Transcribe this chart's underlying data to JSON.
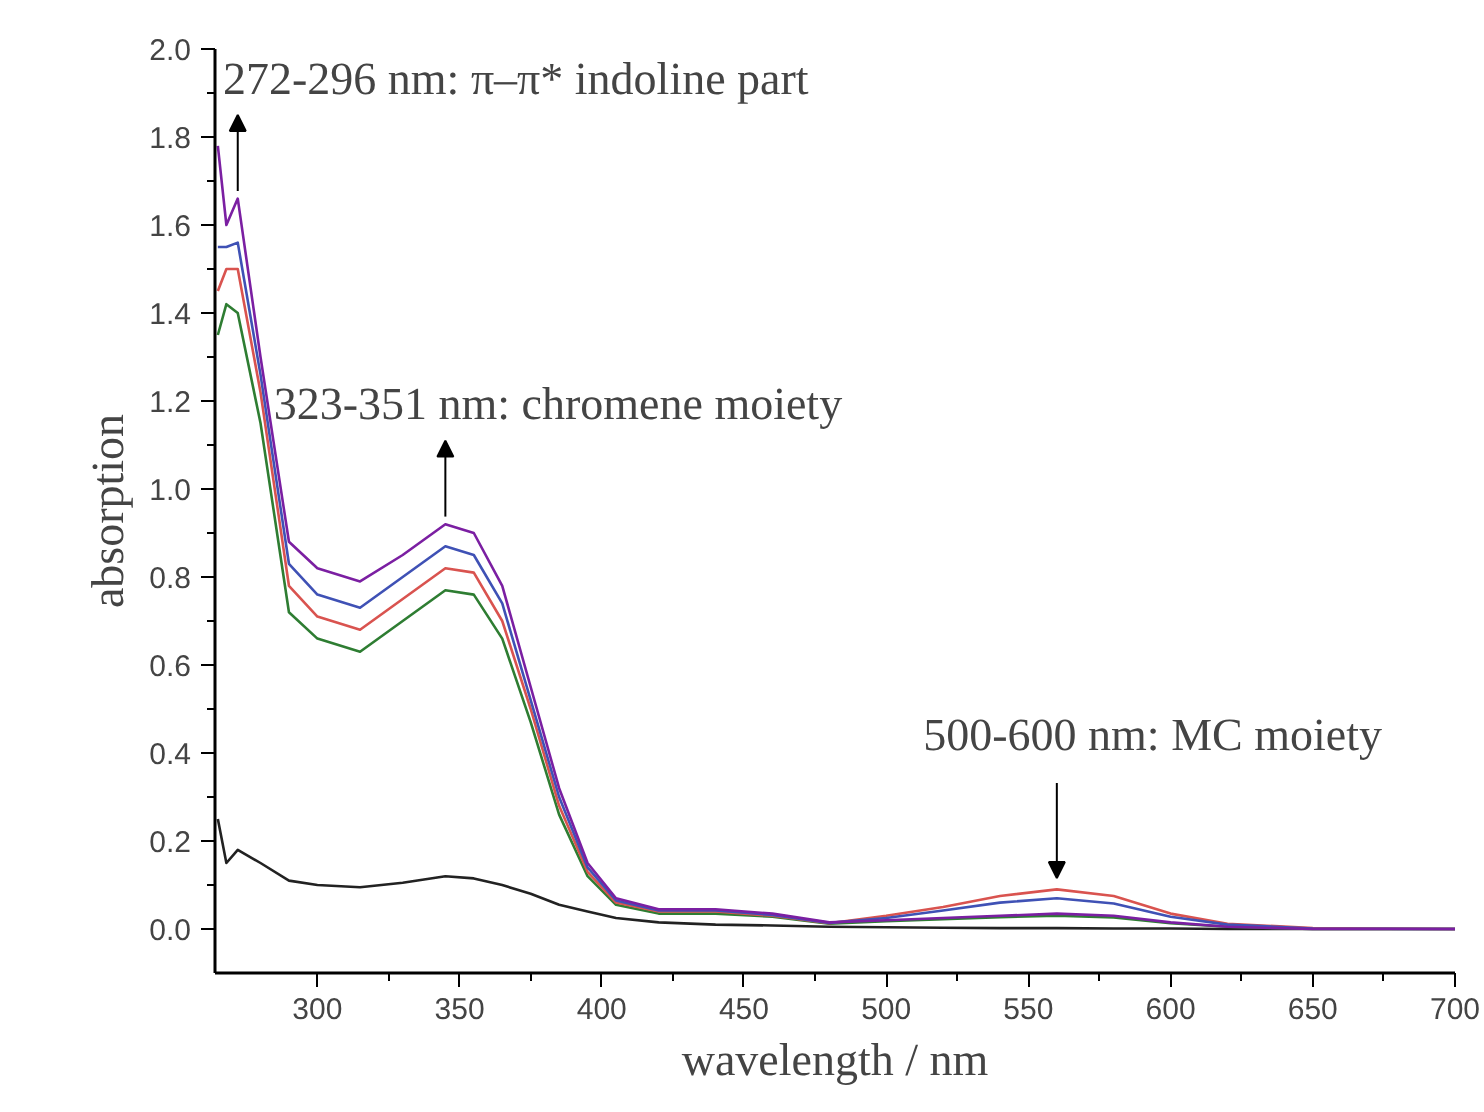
{
  "chart_data": {
    "type": "line",
    "xlabel": "wavelength / nm",
    "ylabel": "absorption",
    "x": [
      265,
      268,
      272,
      280,
      290,
      300,
      315,
      330,
      345,
      355,
      365,
      375,
      385,
      395,
      405,
      420,
      440,
      460,
      480,
      500,
      520,
      540,
      560,
      580,
      600,
      620,
      650,
      700
    ],
    "series": [
      {
        "color": "#222222",
        "values": [
          0.25,
          0.15,
          0.18,
          0.15,
          0.11,
          0.1,
          0.095,
          0.105,
          0.12,
          0.115,
          0.1,
          0.08,
          0.055,
          0.04,
          0.025,
          0.015,
          0.01,
          0.008,
          0.005,
          0.004,
          0.003,
          0.002,
          0.002,
          0.001,
          0.001,
          0.0,
          0.0,
          0.0
        ]
      },
      {
        "color": "#2e7d32",
        "values": [
          1.35,
          1.42,
          1.4,
          1.15,
          0.72,
          0.66,
          0.63,
          0.7,
          0.77,
          0.76,
          0.66,
          0.47,
          0.26,
          0.12,
          0.055,
          0.035,
          0.035,
          0.028,
          0.012,
          0.018,
          0.022,
          0.027,
          0.03,
          0.026,
          0.013,
          0.005,
          0.0,
          0.0
        ]
      },
      {
        "color": "#d9534f",
        "values": [
          1.45,
          1.5,
          1.5,
          1.22,
          0.78,
          0.71,
          0.68,
          0.75,
          0.82,
          0.81,
          0.7,
          0.5,
          0.28,
          0.13,
          0.06,
          0.04,
          0.04,
          0.03,
          0.013,
          0.03,
          0.05,
          0.075,
          0.09,
          0.075,
          0.035,
          0.012,
          0.002,
          0.0
        ]
      },
      {
        "color": "#3f51b5",
        "values": [
          1.55,
          1.55,
          1.56,
          1.26,
          0.83,
          0.76,
          0.73,
          0.8,
          0.87,
          0.85,
          0.74,
          0.52,
          0.3,
          0.14,
          0.065,
          0.042,
          0.042,
          0.032,
          0.014,
          0.025,
          0.042,
          0.06,
          0.07,
          0.058,
          0.028,
          0.01,
          0.001,
          0.0
        ]
      },
      {
        "color": "#7b1fa2",
        "values": [
          1.78,
          1.6,
          1.66,
          1.3,
          0.88,
          0.82,
          0.79,
          0.85,
          0.92,
          0.9,
          0.78,
          0.55,
          0.32,
          0.15,
          0.07,
          0.045,
          0.045,
          0.035,
          0.015,
          0.02,
          0.025,
          0.03,
          0.035,
          0.03,
          0.015,
          0.005,
          0.0,
          0.0
        ]
      }
    ],
    "xlim": [
      264,
      700
    ],
    "ylim": [
      -0.1,
      2.0
    ],
    "xticks": [
      300,
      350,
      400,
      450,
      500,
      550,
      600,
      650,
      700
    ],
    "yticks": [
      {
        "value": 0,
        "label": "0.0"
      },
      {
        "value": 0.2,
        "label": "0.2"
      },
      {
        "value": 0.4,
        "label": "0.4"
      },
      {
        "value": 0.6,
        "label": "0.6"
      },
      {
        "value": 0.8,
        "label": "0.8"
      },
      {
        "value": 1,
        "label": "1.0"
      },
      {
        "value": 1.2,
        "label": "1.2"
      },
      {
        "value": 1.4,
        "label": "1.4"
      },
      {
        "value": 1.6,
        "label": "1.6"
      },
      {
        "value": 1.8,
        "label": "1.8"
      },
      {
        "value": 2,
        "label": "2.0"
      }
    ],
    "grid": false,
    "line_style": "solid",
    "annotations": [
      {
        "text": "272-296 nm: π–π* indoline part",
        "x": 272,
        "y": 1.66
      },
      {
        "text": "323-351 nm: chromene moiety",
        "x": 345,
        "y": 0.92
      },
      {
        "text": "500-600 nm: MC moiety",
        "x": 560,
        "y": 0.09
      }
    ]
  }
}
